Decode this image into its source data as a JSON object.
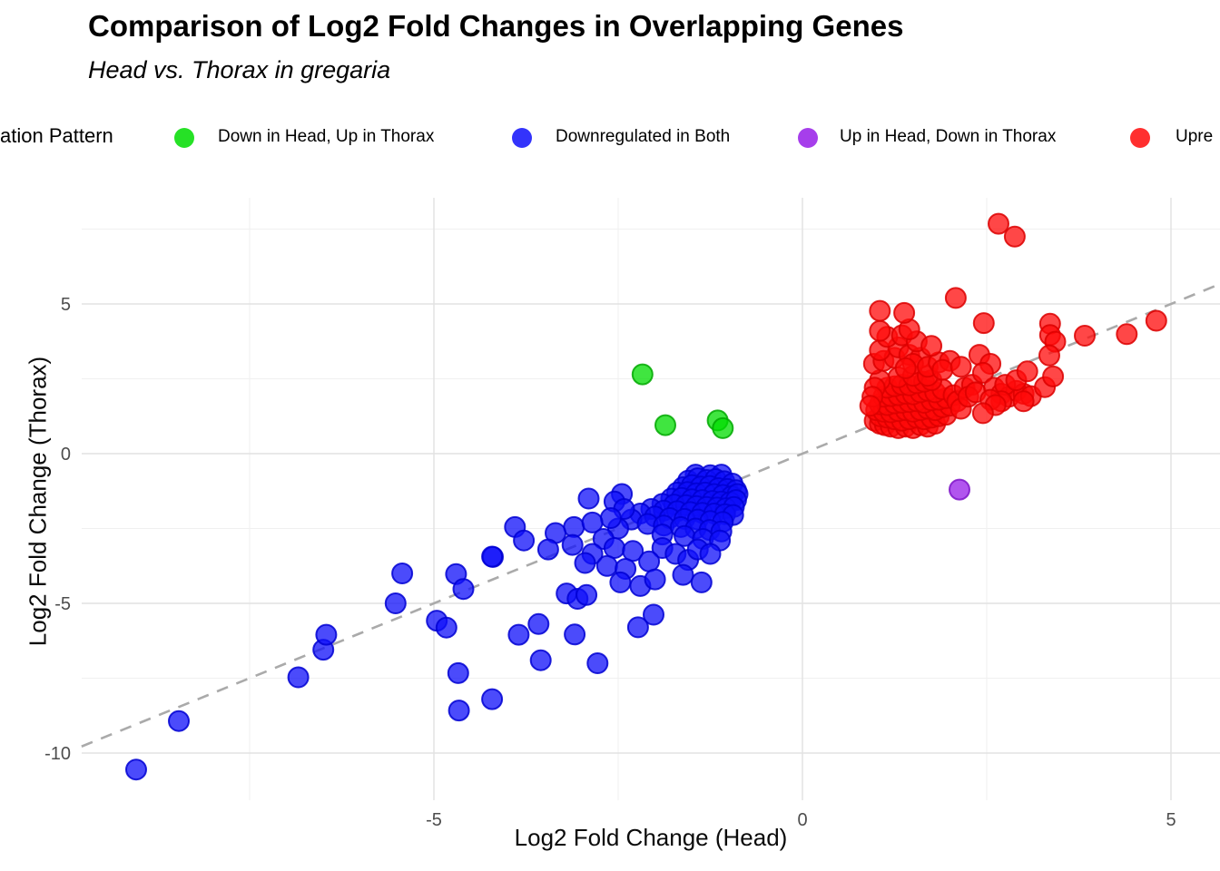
{
  "header": {
    "title": "Comparison of Log2 Fold Changes in Overlapping Genes",
    "subtitle": "Head vs. Thorax in gregaria"
  },
  "legend": {
    "title_visible": "ation Pattern",
    "items": [
      {
        "label": "Down in Head, Up in Thorax",
        "color": "#00DC00"
      },
      {
        "label": "Downregulated in Both",
        "color": "#0F0FFA"
      },
      {
        "label": "Up in Head, Down in Thorax",
        "color": "#971CE8"
      },
      {
        "label": "Upre",
        "color": "#FF0A0A"
      }
    ]
  },
  "axes": {
    "x": {
      "title": "Log2 Fold Change (Head)"
    },
    "y": {
      "title": "Log2 Fold Change (Thorax)"
    }
  },
  "chart_data": {
    "type": "scatter",
    "title": "Comparison of Log2 Fold Changes in Overlapping Genes",
    "subtitle": "Head vs. Thorax in gregaria",
    "xlabel": "Log2 Fold Change (Head)",
    "ylabel": "Log2 Fold Change (Thorax)",
    "xlim": [
      -9.78,
      5.66
    ],
    "ylim": [
      -11.58,
      8.55
    ],
    "x_ticks": [
      -5,
      0,
      5
    ],
    "x_minor_ticks": [
      -7.5,
      -2.5,
      2.5
    ],
    "y_ticks": [
      5,
      0,
      -5,
      -10
    ],
    "y_minor_ticks": [
      7.5,
      2.5,
      -2.5,
      -7.5
    ],
    "grid": {
      "major_color": "#E2E2E2",
      "minor_color": "#F0F0F0"
    },
    "identity_line": {
      "equation": "y = x",
      "style": "dashed",
      "color": "#AAAAAA"
    },
    "point_radius": 11,
    "series": [
      {
        "name": "Down in Head, Up in Thorax",
        "fill": "#00DC00",
        "stroke": "#00A800",
        "points": [
          [
            -2.17,
            2.65
          ],
          [
            -1.86,
            0.95
          ],
          [
            -1.15,
            1.11
          ],
          [
            -1.08,
            0.85
          ]
        ]
      },
      {
        "name": "Downregulated in Both",
        "fill": "#0F0FFA",
        "stroke": "#0000D2",
        "points": [
          [
            -1.45,
            -0.7
          ],
          [
            -1.25,
            -0.72
          ],
          [
            -1.1,
            -0.7
          ],
          [
            -1.55,
            -0.9
          ],
          [
            -1.42,
            -0.82
          ],
          [
            -1.3,
            -0.88
          ],
          [
            -1.18,
            -0.85
          ],
          [
            -1.06,
            -0.92
          ],
          [
            -0.95,
            -1.0
          ],
          [
            -1.62,
            -1.12
          ],
          [
            -1.5,
            -1.05
          ],
          [
            -1.38,
            -1.1
          ],
          [
            -1.26,
            -1.08
          ],
          [
            -1.14,
            -1.15
          ],
          [
            -1.02,
            -1.18
          ],
          [
            -0.9,
            -1.22
          ],
          [
            -1.7,
            -1.3
          ],
          [
            -1.56,
            -1.28
          ],
          [
            -1.44,
            -1.32
          ],
          [
            -1.32,
            -1.3
          ],
          [
            -1.2,
            -1.35
          ],
          [
            -1.08,
            -1.38
          ],
          [
            -0.96,
            -1.42
          ],
          [
            -0.88,
            -1.35
          ],
          [
            -1.78,
            -1.5
          ],
          [
            -1.64,
            -1.48
          ],
          [
            -1.5,
            -1.52
          ],
          [
            -1.36,
            -1.55
          ],
          [
            -1.22,
            -1.58
          ],
          [
            -1.1,
            -1.6
          ],
          [
            -0.98,
            -1.62
          ],
          [
            -0.9,
            -1.55
          ],
          [
            -1.9,
            -1.68
          ],
          [
            -1.74,
            -1.7
          ],
          [
            -1.58,
            -1.72
          ],
          [
            -1.44,
            -1.75
          ],
          [
            -1.3,
            -1.78
          ],
          [
            -1.16,
            -1.8
          ],
          [
            -1.04,
            -1.82
          ],
          [
            -0.93,
            -1.78
          ],
          [
            -2.05,
            -1.85
          ],
          [
            -1.88,
            -1.9
          ],
          [
            -1.7,
            -1.92
          ],
          [
            -1.52,
            -1.95
          ],
          [
            -1.36,
            -1.98
          ],
          [
            -1.2,
            -2.0
          ],
          [
            -1.05,
            -2.02
          ],
          [
            -0.94,
            -2.05
          ],
          [
            -2.2,
            -2.0
          ],
          [
            -2.0,
            -2.1
          ],
          [
            -1.8,
            -2.15
          ],
          [
            -1.6,
            -2.18
          ],
          [
            -1.42,
            -2.2
          ],
          [
            -1.25,
            -2.25
          ],
          [
            -1.08,
            -2.28
          ],
          [
            -2.32,
            -2.2
          ],
          [
            -2.1,
            -2.35
          ],
          [
            -1.88,
            -2.4
          ],
          [
            -1.65,
            -2.45
          ],
          [
            -1.45,
            -2.5
          ],
          [
            -1.26,
            -2.55
          ],
          [
            -1.1,
            -2.6
          ],
          [
            -1.9,
            -2.7
          ],
          [
            -1.6,
            -2.75
          ],
          [
            -1.35,
            -2.85
          ],
          [
            -1.12,
            -2.9
          ],
          [
            -2.45,
            -1.35
          ],
          [
            -2.55,
            -1.6
          ],
          [
            -2.42,
            -1.85
          ],
          [
            -2.5,
            -2.5
          ],
          [
            -2.6,
            -2.15
          ],
          [
            -2.9,
            -1.5
          ],
          [
            -3.1,
            -2.45
          ],
          [
            -2.85,
            -2.3
          ],
          [
            -2.7,
            -2.85
          ],
          [
            -3.35,
            -2.65
          ],
          [
            -3.9,
            -2.45
          ],
          [
            -3.78,
            -2.9
          ],
          [
            -4.2,
            -3.45
          ],
          [
            -3.45,
            -3.2
          ],
          [
            -3.12,
            -3.05
          ],
          [
            -2.85,
            -3.35
          ],
          [
            -2.55,
            -3.15
          ],
          [
            -2.3,
            -3.25
          ],
          [
            -2.95,
            -3.65
          ],
          [
            -2.65,
            -3.75
          ],
          [
            -2.4,
            -3.85
          ],
          [
            -1.9,
            -3.15
          ],
          [
            -1.72,
            -3.35
          ],
          [
            -1.55,
            -3.55
          ],
          [
            -2.08,
            -3.6
          ],
          [
            -1.42,
            -3.2
          ],
          [
            -5.43,
            -4.0
          ],
          [
            -4.7,
            -4.02
          ],
          [
            -5.52,
            -5.0
          ],
          [
            -4.96,
            -5.58
          ],
          [
            -4.83,
            -5.81
          ],
          [
            -4.6,
            -4.52
          ],
          [
            -4.21,
            -3.44
          ],
          [
            -4.67,
            -7.33
          ],
          [
            -4.66,
            -8.58
          ],
          [
            -4.21,
            -8.2
          ],
          [
            -3.85,
            -6.05
          ],
          [
            -3.58,
            -5.69
          ],
          [
            -3.55,
            -6.9
          ],
          [
            -3.09,
            -6.04
          ],
          [
            -2.78,
            -7.0
          ],
          [
            -2.23,
            -5.8
          ],
          [
            -2.02,
            -5.38
          ],
          [
            -3.2,
            -4.67
          ],
          [
            -3.05,
            -4.85
          ],
          [
            -2.93,
            -4.72
          ],
          [
            -2.47,
            -4.3
          ],
          [
            -2.2,
            -4.42
          ],
          [
            -2.0,
            -4.2
          ],
          [
            -1.37,
            -4.3
          ],
          [
            -1.62,
            -4.05
          ],
          [
            -1.25,
            -3.35
          ],
          [
            -9.04,
            -10.55
          ],
          [
            -8.46,
            -8.93
          ],
          [
            -6.84,
            -7.47
          ],
          [
            -6.5,
            -6.55
          ],
          [
            -6.46,
            -6.05
          ]
        ]
      },
      {
        "name": "Up in Head, Down in Thorax",
        "fill": "#971CE8",
        "stroke": "#7E14C8",
        "points": [
          [
            2.13,
            -1.2
          ]
        ]
      },
      {
        "name": "Upre",
        "fill": "#FF0A0A",
        "stroke": "#DC0000",
        "points": [
          [
            0.98,
            1.1
          ],
          [
            1.05,
            1.0
          ],
          [
            1.12,
            0.95
          ],
          [
            1.2,
            0.9
          ],
          [
            1.3,
            0.85
          ],
          [
            1.4,
            0.9
          ],
          [
            1.5,
            0.85
          ],
          [
            1.6,
            0.95
          ],
          [
            1.7,
            0.9
          ],
          [
            1.8,
            1.0
          ],
          [
            1.05,
            1.25
          ],
          [
            1.15,
            1.2
          ],
          [
            1.25,
            1.15
          ],
          [
            1.35,
            1.1
          ],
          [
            1.45,
            1.15
          ],
          [
            1.55,
            1.2
          ],
          [
            1.65,
            1.15
          ],
          [
            1.75,
            1.2
          ],
          [
            1.85,
            1.25
          ],
          [
            1.95,
            1.3
          ],
          [
            1.0,
            1.45
          ],
          [
            1.1,
            1.4
          ],
          [
            1.2,
            1.38
          ],
          [
            1.3,
            1.42
          ],
          [
            1.4,
            1.45
          ],
          [
            1.5,
            1.4
          ],
          [
            1.6,
            1.45
          ],
          [
            1.7,
            1.5
          ],
          [
            1.8,
            1.45
          ],
          [
            1.9,
            1.55
          ],
          [
            2.0,
            1.6
          ],
          [
            1.05,
            1.65
          ],
          [
            1.15,
            1.62
          ],
          [
            1.25,
            1.68
          ],
          [
            1.35,
            1.7
          ],
          [
            1.45,
            1.72
          ],
          [
            1.55,
            1.75
          ],
          [
            1.65,
            1.7
          ],
          [
            1.75,
            1.78
          ],
          [
            1.85,
            1.8
          ],
          [
            1.95,
            1.85
          ],
          [
            1.1,
            1.9
          ],
          [
            1.2,
            1.92
          ],
          [
            1.3,
            1.95
          ],
          [
            1.4,
            2.0
          ],
          [
            1.5,
            1.98
          ],
          [
            1.6,
            2.05
          ],
          [
            1.7,
            2.1
          ],
          [
            1.8,
            2.05
          ],
          [
            1.9,
            2.15
          ],
          [
            1.15,
            2.2
          ],
          [
            1.25,
            2.25
          ],
          [
            1.35,
            2.3
          ],
          [
            1.45,
            2.28
          ],
          [
            1.55,
            2.35
          ],
          [
            1.65,
            2.4
          ],
          [
            1.75,
            2.45
          ],
          [
            1.3,
            2.55
          ],
          [
            1.5,
            2.6
          ],
          [
            1.7,
            2.6
          ],
          [
            1.05,
            2.45
          ],
          [
            0.98,
            2.2
          ],
          [
            0.95,
            1.9
          ],
          [
            0.92,
            1.6
          ],
          [
            2.05,
            1.95
          ],
          [
            2.1,
            1.75
          ],
          [
            2.15,
            1.5
          ],
          [
            2.2,
            2.2
          ],
          [
            2.3,
            2.3
          ],
          [
            2.25,
            1.9
          ],
          [
            2.35,
            2.05
          ],
          [
            0.97,
            3.0
          ],
          [
            1.1,
            3.1
          ],
          [
            1.25,
            3.2
          ],
          [
            1.05,
            3.45
          ],
          [
            1.3,
            3.55
          ],
          [
            1.45,
            3.3
          ],
          [
            1.6,
            3.2
          ],
          [
            1.5,
            3.0
          ],
          [
            1.4,
            2.85
          ],
          [
            1.7,
            2.9
          ],
          [
            1.85,
            3.05
          ],
          [
            2.0,
            3.1
          ],
          [
            1.9,
            2.8
          ],
          [
            2.15,
            2.9
          ],
          [
            1.15,
            3.9
          ],
          [
            1.35,
            3.95
          ],
          [
            1.55,
            3.75
          ],
          [
            1.75,
            3.6
          ],
          [
            1.05,
            4.1
          ],
          [
            1.45,
            4.15
          ],
          [
            2.4,
            3.3
          ],
          [
            2.55,
            3.0
          ],
          [
            2.45,
            2.7
          ],
          [
            2.6,
            2.2
          ],
          [
            2.7,
            2.0
          ],
          [
            2.8,
            1.9
          ],
          [
            2.9,
            2.1
          ],
          [
            3.0,
            2.0
          ],
          [
            2.75,
            2.3
          ],
          [
            3.1,
            1.92
          ],
          [
            3.29,
            2.22
          ],
          [
            3.4,
            2.58
          ],
          [
            2.9,
            2.45
          ],
          [
            3.05,
            2.75
          ],
          [
            2.7,
            1.75
          ],
          [
            2.55,
            1.8
          ],
          [
            2.62,
            1.62
          ],
          [
            2.45,
            1.35
          ],
          [
            3.0,
            1.75
          ],
          [
            2.66,
            7.68
          ],
          [
            2.88,
            7.25
          ],
          [
            2.08,
            5.2
          ],
          [
            1.05,
            4.77
          ],
          [
            1.38,
            4.7
          ],
          [
            2.46,
            4.36
          ],
          [
            3.36,
            4.34
          ],
          [
            3.36,
            3.96
          ],
          [
            3.43,
            3.74
          ],
          [
            3.35,
            3.28
          ],
          [
            3.83,
            3.94
          ],
          [
            4.4,
            3.99
          ],
          [
            4.8,
            4.44
          ]
        ]
      }
    ]
  }
}
